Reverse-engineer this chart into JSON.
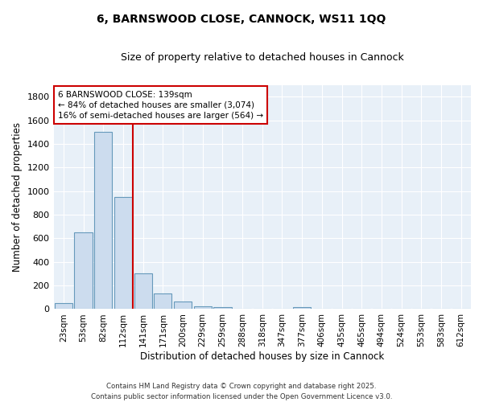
{
  "title1": "6, BARNSWOOD CLOSE, CANNOCK, WS11 1QQ",
  "title2": "Size of property relative to detached houses in Cannock",
  "xlabel": "Distribution of detached houses by size in Cannock",
  "ylabel": "Number of detached properties",
  "categories": [
    "23sqm",
    "53sqm",
    "82sqm",
    "112sqm",
    "141sqm",
    "171sqm",
    "200sqm",
    "229sqm",
    "259sqm",
    "288sqm",
    "318sqm",
    "347sqm",
    "377sqm",
    "406sqm",
    "435sqm",
    "465sqm",
    "494sqm",
    "524sqm",
    "553sqm",
    "583sqm",
    "612sqm"
  ],
  "values": [
    50,
    650,
    1500,
    950,
    300,
    135,
    65,
    25,
    15,
    5,
    2,
    0,
    15,
    0,
    0,
    0,
    0,
    0,
    0,
    0,
    0
  ],
  "bar_color": "#ccdcee",
  "bar_edge_color": "#6699bb",
  "annotation_line1": "6 BARNSWOOD CLOSE: 139sqm",
  "annotation_line2": "← 84% of detached houses are smaller (3,074)",
  "annotation_line3": "16% of semi-detached houses are larger (564) →",
  "vline_color": "#cc0000",
  "vline_x": 3.5,
  "ylim": [
    0,
    1900
  ],
  "yticks": [
    0,
    200,
    400,
    600,
    800,
    1000,
    1200,
    1400,
    1600,
    1800
  ],
  "fig_bg_color": "#ffffff",
  "axes_bg_color": "#e8f0f8",
  "grid_color": "#ffffff",
  "footer1": "Contains HM Land Registry data © Crown copyright and database right 2025.",
  "footer2": "Contains public sector information licensed under the Open Government Licence v3.0."
}
